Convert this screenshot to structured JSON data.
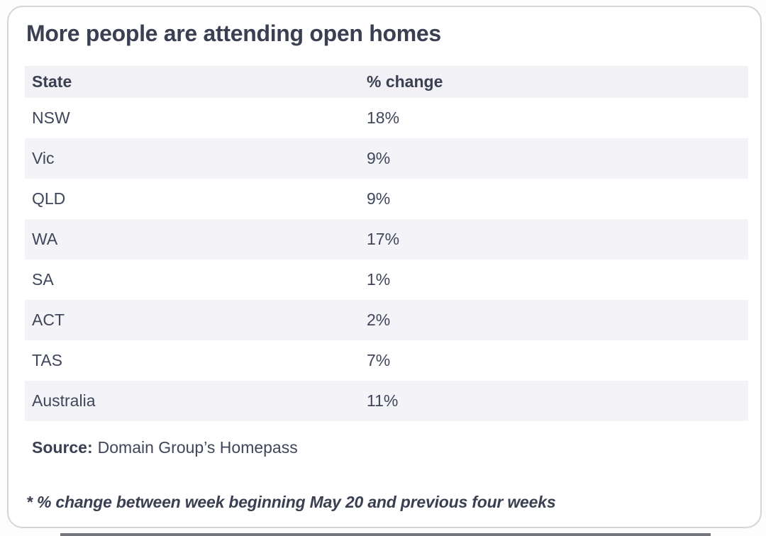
{
  "chart_data": {
    "type": "table",
    "title": "More people are attending open homes",
    "columns": [
      "State",
      "% change"
    ],
    "rows": [
      [
        "NSW",
        "18%"
      ],
      [
        "Vic",
        "9%"
      ],
      [
        "QLD",
        "9%"
      ],
      [
        "WA",
        "17%"
      ],
      [
        "SA",
        "1%"
      ],
      [
        "ACT",
        "2%"
      ],
      [
        "TAS",
        "7%"
      ],
      [
        "Australia",
        "11%"
      ]
    ],
    "values_numeric": [
      18,
      9,
      9,
      17,
      1,
      2,
      7,
      11
    ],
    "footnote": "* % change between week beginning May 20 and previous four weeks"
  },
  "source": {
    "label": "Source:",
    "text": "Domain Group’s Homepass"
  },
  "colors": {
    "text_dark": "#3a4051",
    "text_row": "#40465a",
    "row_stripe": "#f4f4f8",
    "header_bg": "#f1f1f6",
    "card_border": "#d5d5d7",
    "bottom_bar": "#76777e"
  }
}
